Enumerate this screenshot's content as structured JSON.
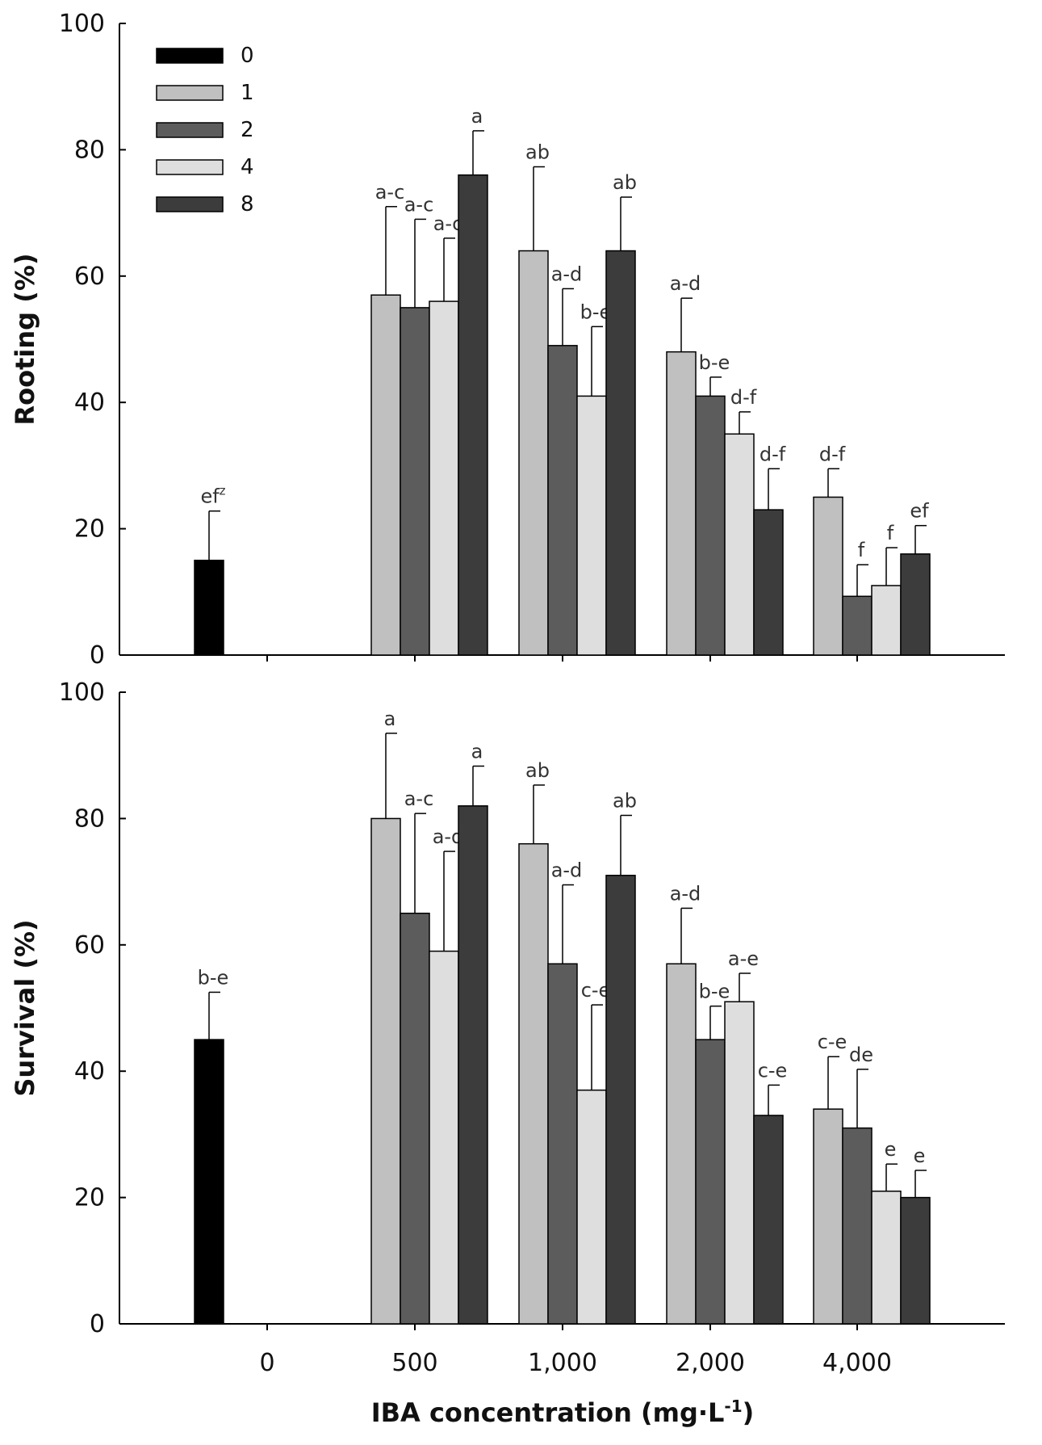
{
  "chart_data": [
    {
      "type": "bar",
      "panel": "top",
      "ylabel": "Rooting (%)",
      "ylim": [
        0,
        100
      ],
      "yticks": [
        "0",
        "20",
        "40",
        "60",
        "80",
        "100"
      ],
      "xticks": [
        "0",
        "500",
        "1,000",
        "2,000",
        "4,000"
      ],
      "show_x_tick_labels": false,
      "legend_position": "top-left",
      "grid": false,
      "series_names": [
        "0",
        "1",
        "2",
        "4",
        "8"
      ],
      "series_colors": [
        "#000000",
        "#c0c0c0",
        "#5c5c5c",
        "#dedede",
        "#3c3c3c"
      ],
      "control": {
        "series": "0",
        "category": "0",
        "value": 15,
        "error": 7.8,
        "label": "ef",
        "label_sup": "z"
      },
      "groups": [
        {
          "category": "500",
          "values": [
            57,
            55,
            56,
            76
          ],
          "errors": [
            14,
            14,
            10,
            7
          ],
          "labels": [
            "a-c",
            "a-c",
            "a-c",
            "a"
          ]
        },
        {
          "category": "1,000",
          "values": [
            64,
            49,
            41,
            64
          ],
          "errors": [
            13.3,
            9,
            11,
            8.5
          ],
          "labels": [
            "ab",
            "a-d",
            "b-e",
            "ab"
          ]
        },
        {
          "category": "2,000",
          "values": [
            48,
            41,
            35,
            23
          ],
          "errors": [
            8.5,
            3,
            3.5,
            6.5
          ],
          "labels": [
            "a-d",
            "b-e",
            "d-f",
            "d-f"
          ]
        },
        {
          "category": "4,000",
          "values": [
            25,
            9.3,
            11,
            16
          ],
          "errors": [
            4.5,
            5,
            6,
            4.5
          ],
          "labels": [
            "d-f",
            "f",
            "f",
            "ef"
          ]
        }
      ]
    },
    {
      "type": "bar",
      "panel": "bottom",
      "ylabel": "Survival (%)",
      "xlabel": "IBA concentration (mg·L",
      "xlabel_sup": "-1",
      "xlabel_close": ")",
      "ylim": [
        0,
        100
      ],
      "yticks": [
        "0",
        "20",
        "40",
        "60",
        "80",
        "100"
      ],
      "xticks": [
        "0",
        "500",
        "1,000",
        "2,000",
        "4,000"
      ],
      "show_x_tick_labels": true,
      "grid": false,
      "series_names": [
        "0",
        "1",
        "2",
        "4",
        "8"
      ],
      "series_colors": [
        "#000000",
        "#c0c0c0",
        "#5c5c5c",
        "#dedede",
        "#3c3c3c"
      ],
      "control": {
        "series": "0",
        "category": "0",
        "value": 45,
        "error": 7.5,
        "label": "b-e",
        "label_sup": ""
      },
      "groups": [
        {
          "category": "500",
          "values": [
            80,
            65,
            59,
            82
          ],
          "errors": [
            13.5,
            15.8,
            15.8,
            6.3
          ],
          "labels": [
            "a",
            "a-c",
            "a-d",
            "a"
          ]
        },
        {
          "category": "1,000",
          "values": [
            76,
            57,
            37,
            71
          ],
          "errors": [
            9.3,
            12.5,
            13.5,
            9.5
          ],
          "labels": [
            "ab",
            "a-d",
            "c-e",
            "ab"
          ]
        },
        {
          "category": "2,000",
          "values": [
            57,
            45,
            51,
            33
          ],
          "errors": [
            8.8,
            5.3,
            4.5,
            4.8
          ],
          "labels": [
            "a-d",
            "b-e",
            "a-e",
            "c-e"
          ]
        },
        {
          "category": "4,000",
          "values": [
            34,
            31,
            21,
            20
          ],
          "errors": [
            8.3,
            9.3,
            4.3,
            4.3
          ],
          "labels": [
            "c-e",
            "de",
            "e",
            "e"
          ]
        }
      ]
    }
  ],
  "legend": {
    "items": [
      {
        "label": "0",
        "color": "#000000"
      },
      {
        "label": "1",
        "color": "#c0c0c0"
      },
      {
        "label": "2",
        "color": "#5c5c5c"
      },
      {
        "label": "4",
        "color": "#dedede"
      },
      {
        "label": "8",
        "color": "#3c3c3c"
      }
    ]
  }
}
